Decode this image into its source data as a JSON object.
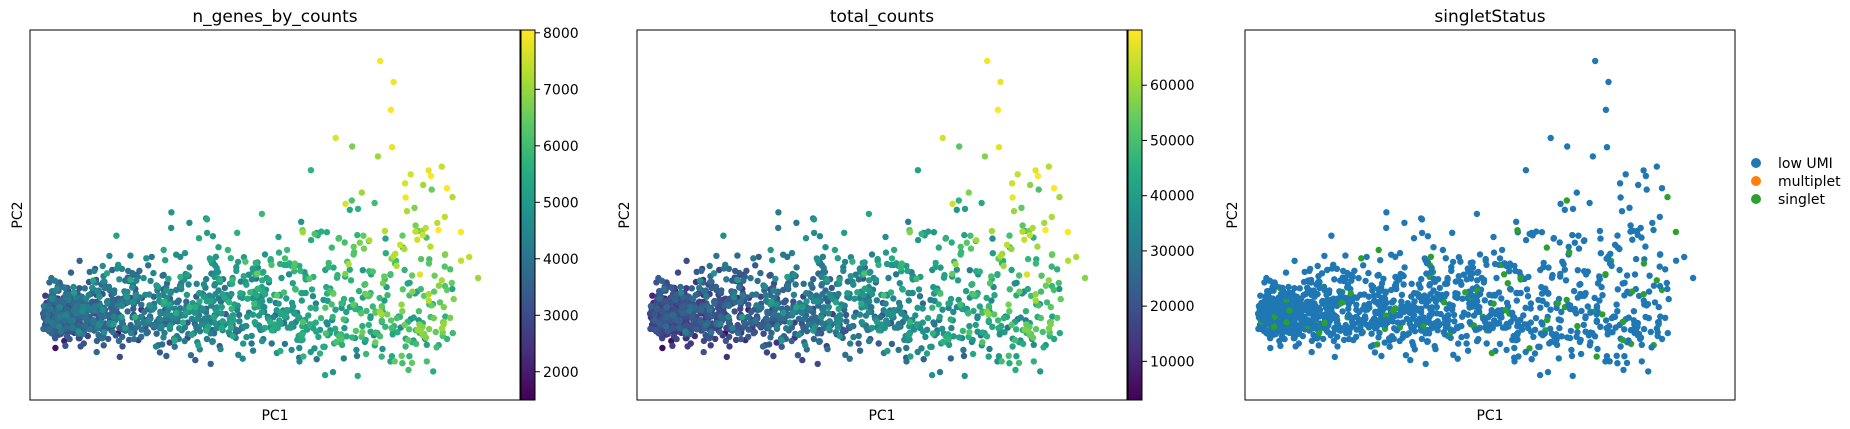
{
  "chart_data": [
    {
      "type": "scatter",
      "title": "n_genes_by_counts",
      "xlabel": "PC1",
      "ylabel": "PC2",
      "colormap": "viridis",
      "colorbar": {
        "ticks": [
          "2000",
          "3000",
          "4000",
          "5000",
          "6000",
          "7000",
          "8000"
        ],
        "range": [
          1500,
          8050
        ]
      },
      "grid": false,
      "point_color": "#5ec962",
      "n_points": 1400
    },
    {
      "type": "scatter",
      "title": "total_counts",
      "xlabel": "PC1",
      "ylabel": "PC2",
      "colormap": "viridis",
      "colorbar": {
        "ticks": [
          "10000",
          "20000",
          "30000",
          "40000",
          "50000",
          "60000"
        ],
        "range": [
          3000,
          70000
        ]
      },
      "grid": false,
      "point_color": "#21918c",
      "n_points": 1400
    },
    {
      "type": "scatter",
      "title": "singletStatus",
      "xlabel": "PC1",
      "ylabel": "PC2",
      "grid": false,
      "legend_position": "right",
      "legend": [
        {
          "label": "low UMI",
          "color": "#1f77b4"
        },
        {
          "label": "multiplet",
          "color": "#ff7f0e"
        },
        {
          "label": "singlet",
          "color": "#2ca02c"
        }
      ]
    }
  ]
}
